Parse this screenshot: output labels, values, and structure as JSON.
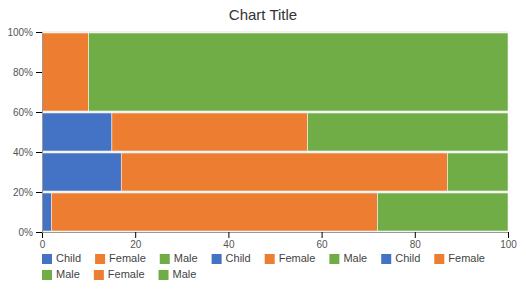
{
  "chart_data": {
    "type": "bar",
    "title": "Chart Title",
    "orientation": "horizontal",
    "stacked": true,
    "grid": true,
    "xlim": [
      0,
      100
    ],
    "ylim": [
      0,
      100
    ],
    "xticks": [
      0,
      20,
      40,
      60,
      80,
      100
    ],
    "yticks": [
      {
        "value": 0,
        "label": "0%"
      },
      {
        "value": 20,
        "label": "20%"
      },
      {
        "value": 40,
        "label": "40%"
      },
      {
        "value": 60,
        "label": "60%"
      },
      {
        "value": 80,
        "label": "80%"
      },
      {
        "value": 100,
        "label": "100%"
      }
    ],
    "bars": [
      {
        "height": 20,
        "segments": [
          {
            "name": "Child",
            "color": "#4472C4",
            "value": 2
          },
          {
            "name": "Female",
            "color": "#ED7D31",
            "value": 70
          },
          {
            "name": "Male",
            "color": "#70AD47",
            "value": 28
          }
        ]
      },
      {
        "height": 20,
        "segments": [
          {
            "name": "Child",
            "color": "#4472C4",
            "value": 17
          },
          {
            "name": "Female",
            "color": "#ED7D31",
            "value": 70
          },
          {
            "name": "Male",
            "color": "#70AD47",
            "value": 13
          }
        ]
      },
      {
        "height": 20,
        "segments": [
          {
            "name": "Child",
            "color": "#4472C4",
            "value": 15
          },
          {
            "name": "Female",
            "color": "#ED7D31",
            "value": 42
          },
          {
            "name": "Male",
            "color": "#70AD47",
            "value": 43
          }
        ]
      },
      {
        "height": 40,
        "segments": [
          {
            "name": "Female",
            "color": "#ED7D31",
            "value": 10
          },
          {
            "name": "Male",
            "color": "#70AD47",
            "value": 90
          }
        ]
      }
    ]
  }
}
